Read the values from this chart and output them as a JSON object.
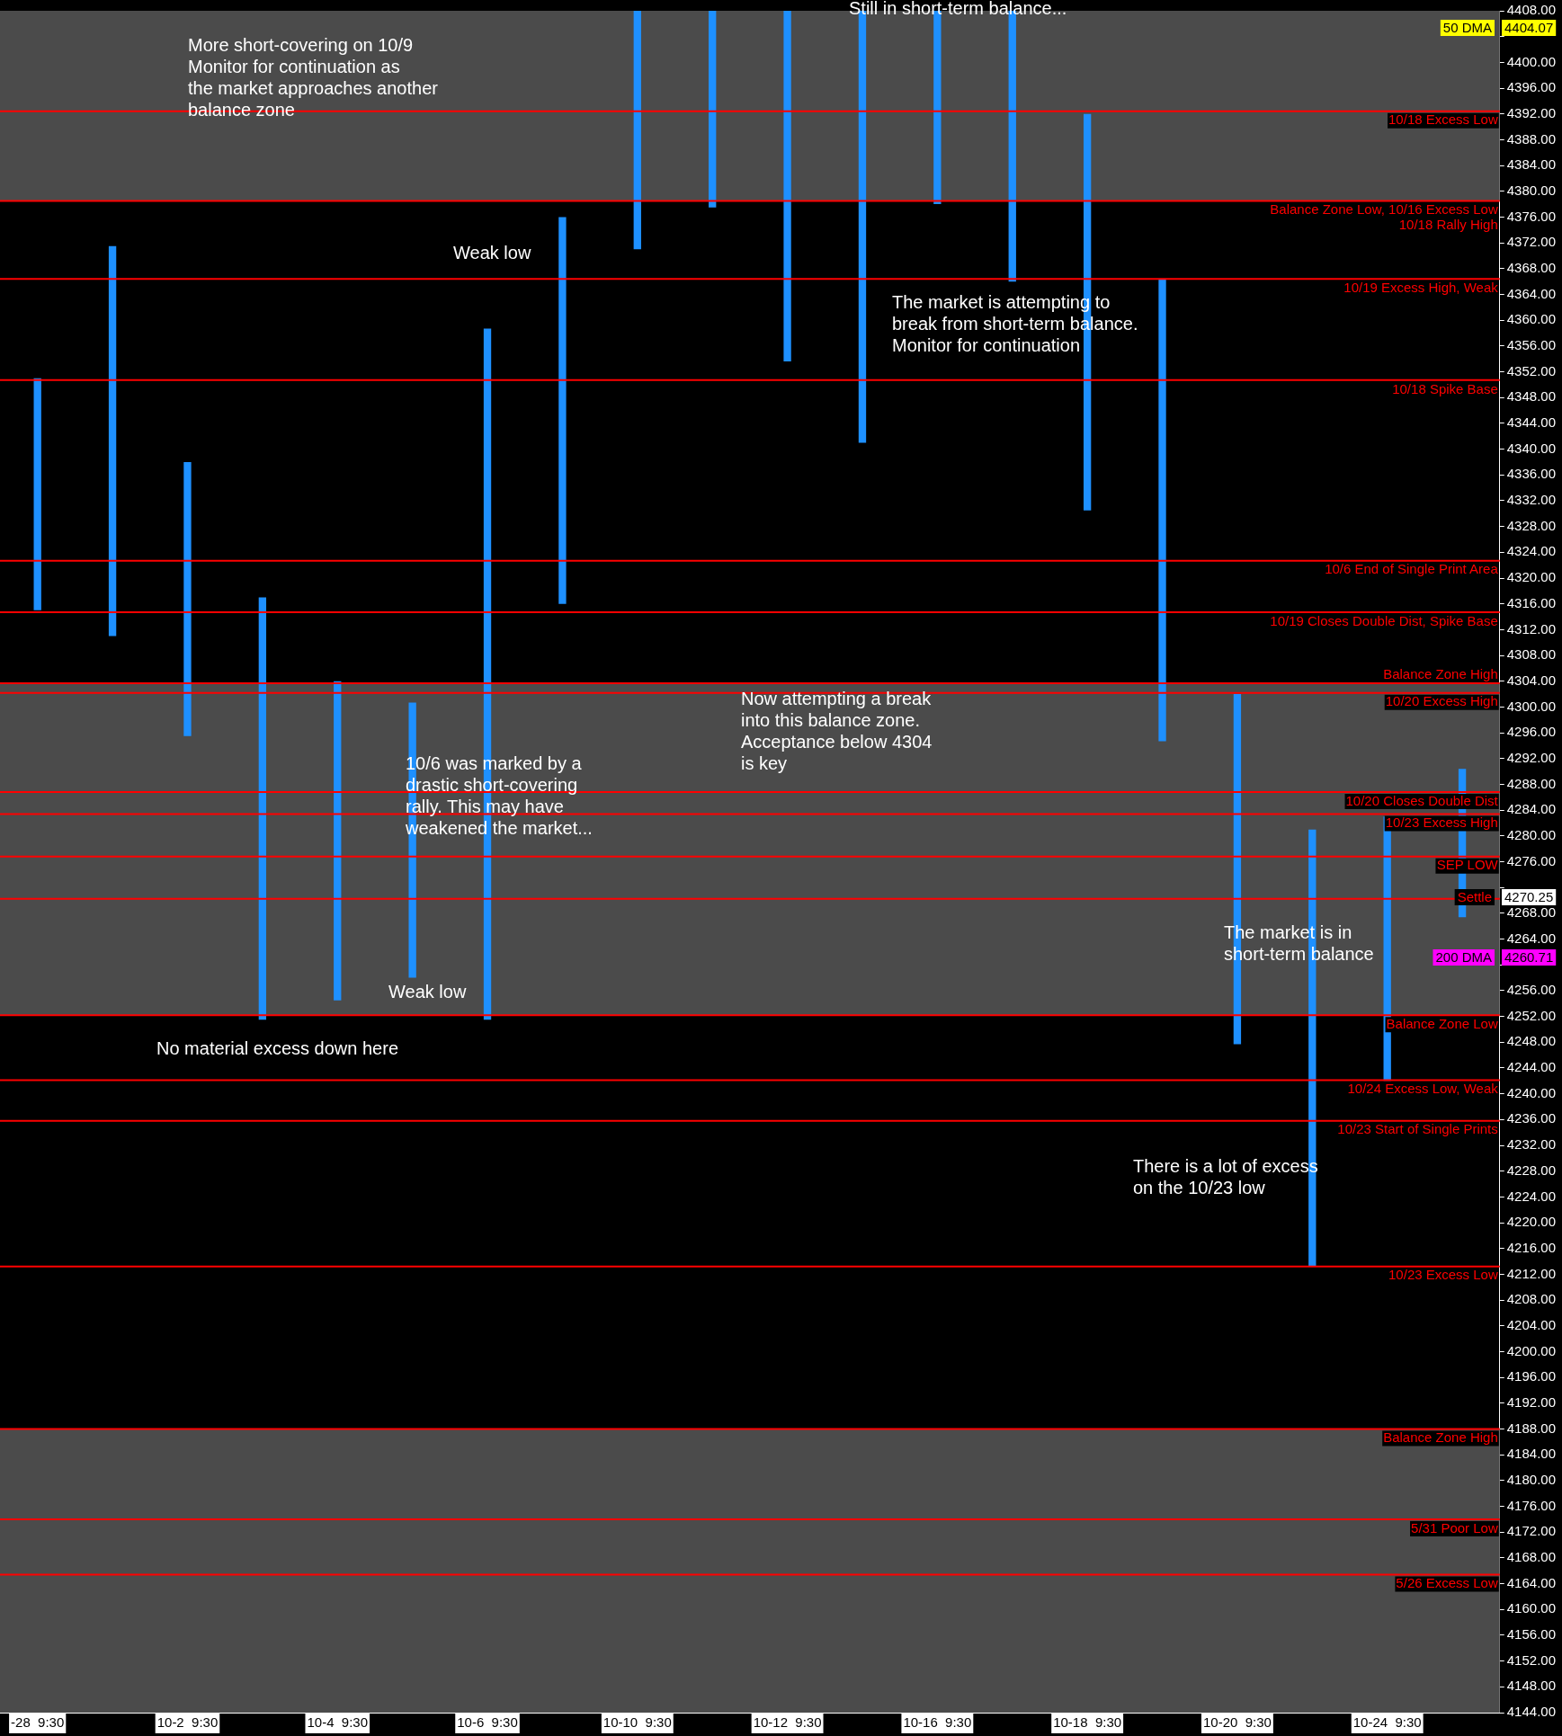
{
  "chart_data": {
    "type": "bar",
    "categories": [
      "-28  9:30",
      null,
      "10-2  9:30",
      null,
      "10-4  9:30",
      null,
      "10-6  9:30",
      null,
      "10-10  9:30",
      null,
      "10-12  9:30",
      null,
      "10-16  9:30",
      null,
      "10-18  9:30",
      null,
      "10-20  9:30",
      null,
      "10-24  9:30",
      null
    ],
    "series": [
      {
        "color": "#1e90ff",
        "base": [
          4315,
          4311,
          4295.5,
          4251.5,
          4254.5,
          4258,
          4251.5,
          4316,
          4371,
          4377.5,
          4353.6,
          4341,
          4378,
          4366,
          4330.5,
          4294.7,
          4247.7,
          4213.2,
          4242,
          4267.4
        ],
        "values": [
          36,
          60.5,
          42.5,
          65.5,
          49.5,
          42.7,
          107.2,
          60,
          37,
          30.5,
          54.4,
          67,
          30,
          42,
          61.5,
          71.7,
          54.3,
          67.8,
          41,
          23
        ]
      }
    ],
    "ylim": [
      4144,
      4408
    ],
    "yticks": [
      {
        "value": 4144,
        "label": "4144.00"
      },
      {
        "value": 4148,
        "label": "4148.00"
      },
      {
        "value": 4152,
        "label": "4152.00"
      },
      {
        "value": 4156,
        "label": "4156.00"
      },
      {
        "value": 4160,
        "label": "4160.00"
      },
      {
        "value": 4164,
        "label": "4164.00"
      },
      {
        "value": 4168,
        "label": "4168.00"
      },
      {
        "value": 4172,
        "label": "4172.00"
      },
      {
        "value": 4176,
        "label": "4176.00"
      },
      {
        "value": 4180,
        "label": "4180.00"
      },
      {
        "value": 4184,
        "label": "4184.00"
      },
      {
        "value": 4188,
        "label": "4188.00"
      },
      {
        "value": 4192,
        "label": "4192.00"
      },
      {
        "value": 4196,
        "label": "4196.00"
      },
      {
        "value": 4200,
        "label": "4200.00"
      },
      {
        "value": 4204,
        "label": "4204.00"
      },
      {
        "value": 4208,
        "label": "4208.00"
      },
      {
        "value": 4212,
        "label": "4212.00"
      },
      {
        "value": 4216,
        "label": "4216.00"
      },
      {
        "value": 4220,
        "label": "4220.00"
      },
      {
        "value": 4224,
        "label": "4224.00"
      },
      {
        "value": 4228,
        "label": "4228.00"
      },
      {
        "value": 4232,
        "label": "4232.00"
      },
      {
        "value": 4236,
        "label": "4236.00"
      },
      {
        "value": 4240,
        "label": "4240.00"
      },
      {
        "value": 4244,
        "label": "4244.00"
      },
      {
        "value": 4248,
        "label": "4248.00"
      },
      {
        "value": 4252,
        "label": "4252.00"
      },
      {
        "value": 4256,
        "label": "4256.00"
      },
      {
        "value": 4260,
        "label": null
      },
      {
        "value": 4264,
        "label": "4264.00"
      },
      {
        "value": 4268,
        "label": "4268.00"
      },
      {
        "value": 4272,
        "label": null
      },
      {
        "value": 4276,
        "label": "4276.00"
      },
      {
        "value": 4280,
        "label": "4280.00"
      },
      {
        "value": 4284,
        "label": "4284.00"
      },
      {
        "value": 4288,
        "label": "4288.00"
      },
      {
        "value": 4292,
        "label": "4292.00"
      },
      {
        "value": 4296,
        "label": "4296.00"
      },
      {
        "value": 4300,
        "label": "4300.00"
      },
      {
        "value": 4304,
        "label": "4304.00"
      },
      {
        "value": 4308,
        "label": "4308.00"
      },
      {
        "value": 4312,
        "label": "4312.00"
      },
      {
        "value": 4316,
        "label": "4316.00"
      },
      {
        "value": 4320,
        "label": "4320.00"
      },
      {
        "value": 4324,
        "label": "4324.00"
      },
      {
        "value": 4328,
        "label": "4328.00"
      },
      {
        "value": 4332,
        "label": "4332.00"
      },
      {
        "value": 4336,
        "label": "4336.00"
      },
      {
        "value": 4340,
        "label": "4340.00"
      },
      {
        "value": 4344,
        "label": "4344.00"
      },
      {
        "value": 4348,
        "label": "4348.00"
      },
      {
        "value": 4352,
        "label": "4352.00"
      },
      {
        "value": 4356,
        "label": "4356.00"
      },
      {
        "value": 4360,
        "label": "4360.00"
      },
      {
        "value": 4364,
        "label": "4364.00"
      },
      {
        "value": 4368,
        "label": "4368.00"
      },
      {
        "value": 4372,
        "label": "4372.00"
      },
      {
        "value": 4376,
        "label": "4376.00"
      },
      {
        "value": 4380,
        "label": "4380.00"
      },
      {
        "value": 4384,
        "label": "4384.00"
      },
      {
        "value": 4388,
        "label": "4388.00"
      },
      {
        "value": 4392,
        "label": "4392.00"
      },
      {
        "value": 4396,
        "label": "4396.00"
      },
      {
        "value": 4400,
        "label": "4400.00"
      },
      {
        "value": 4404,
        "label": null
      },
      {
        "value": 4408,
        "label": "4408.00"
      }
    ],
    "bands": [
      {
        "axis": "y",
        "from": 4378.5,
        "to": 4408,
        "color": "#4b4b4b"
      },
      {
        "axis": "y",
        "from": 4252.2,
        "to": 4303.7,
        "color": "#4b4b4b"
      },
      {
        "axis": "y",
        "from": 4144,
        "to": 4188,
        "color": "#4b4b4b"
      }
    ],
    "ref_lines": [
      {
        "axis": "y",
        "value": 4392.4,
        "label": "10/18 Excess Low",
        "color": "#ff0000"
      },
      {
        "axis": "y",
        "value": 4378.5,
        "label": "Balance Zone Low, 10/16 Excess Low\n10/18 Rally High",
        "color": "#ff0000"
      },
      {
        "axis": "y",
        "value": 4366.4,
        "label": "10/19 Excess High, Weak",
        "color": "#ff0000"
      },
      {
        "axis": "y",
        "value": 4350.7,
        "label": "10/18 Spike Base",
        "color": "#ff0000"
      },
      {
        "axis": "y",
        "value": 4322.7,
        "label": "10/6 End of Single Print Area",
        "color": "#ff0000"
      },
      {
        "axis": "y",
        "value": 4314.7,
        "label": "10/19 Closes Double Dist, Spike Base",
        "color": "#ff0000"
      },
      {
        "axis": "y",
        "value": 4303.7,
        "label": "Balance Zone High",
        "color": "#ff0000"
      },
      {
        "axis": "y",
        "value": 4302.2,
        "label": "10/20 Excess High",
        "color": "#ff0000"
      },
      {
        "axis": "y",
        "value": 4286.8,
        "label": "10/20 Closes Double Dist",
        "color": "#ff0000"
      },
      {
        "axis": "y",
        "value": 4283.4,
        "label": "10/23 Excess High",
        "color": "#ff0000"
      },
      {
        "axis": "y",
        "value": 4276.8,
        "label": "SEP LOW",
        "color": "#ff0000"
      },
      {
        "axis": "y",
        "value": 4270.25,
        "color": "#ff0000"
      },
      {
        "axis": "y",
        "value": 4252.2,
        "label": "Balance Zone Low",
        "color": "#ff0000"
      },
      {
        "axis": "y",
        "value": 4242.1,
        "label": "10/24 Excess Low, Weak",
        "color": "#ff0000"
      },
      {
        "axis": "y",
        "value": 4235.8,
        "label": "10/23 Start of Single Prints",
        "color": "#ff0000"
      },
      {
        "axis": "y",
        "value": 4213.2,
        "label": "10/23 Excess Low",
        "color": "#ff0000"
      },
      {
        "axis": "y",
        "value": 4188,
        "label": "Balance Zone High",
        "color": "#ff0000"
      },
      {
        "axis": "y",
        "value": 4174,
        "label": "5/31 Poor Low",
        "color": "#ff0000"
      },
      {
        "axis": "y",
        "value": 4165.4,
        "label": "5/26 Excess Low",
        "color": "#ff0000"
      }
    ],
    "annotations": [
      "Still in short-term balance...",
      "More short-covering on 10/9\nMonitor for continuation as\nthe market approaches another\nbalance zone",
      "Weak low",
      "The market is attempting to\nbreak from short-term balance.\nMonitor for continuation",
      "Now attempting a break\ninto this balance zone.\nAcceptance below 4304\nis key",
      "10/6 was marked by a\ndrastic short-covering\nrally. This may have\nweakened the market...",
      "The market is in\nshort-term balance",
      "Weak low",
      "No material excess down here",
      "There is a lot of excess\non the 10/23 low",
      "50 DMA",
      "4404.07",
      "Settle",
      "4270.25",
      "200 DMA",
      "4260.71"
    ]
  }
}
